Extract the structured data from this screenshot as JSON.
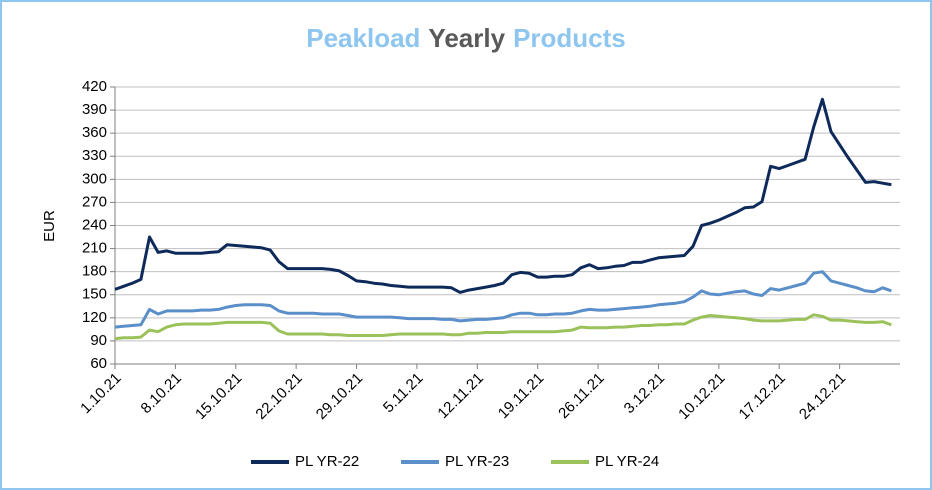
{
  "chart_data": {
    "type": "line",
    "title": [
      "Peakload",
      "Yearly",
      "Products"
    ],
    "title_colors": [
      "#8ec6f0",
      "#595959",
      "#8ec6f0"
    ],
    "ylabel": "EUR",
    "categories": [
      "1.10.21",
      null,
      null,
      null,
      null,
      null,
      null,
      "8.10.21",
      null,
      null,
      null,
      null,
      null,
      null,
      "15.10.21",
      null,
      null,
      null,
      null,
      null,
      null,
      "22.10.21",
      null,
      null,
      null,
      null,
      null,
      null,
      "29.10.21",
      null,
      null,
      null,
      null,
      null,
      null,
      "5.11.21",
      null,
      null,
      null,
      null,
      null,
      null,
      "12.11.21",
      null,
      null,
      null,
      null,
      null,
      null,
      "19.11.21",
      null,
      null,
      null,
      null,
      null,
      null,
      "26.11.21",
      null,
      null,
      null,
      null,
      null,
      null,
      "3.12.21",
      null,
      null,
      null,
      null,
      null,
      null,
      "10.12.21",
      null,
      null,
      null,
      null,
      null,
      null,
      "17.12.21",
      null,
      null,
      null,
      null,
      null,
      null,
      "24.12.21",
      null,
      null,
      null,
      null,
      null,
      null,
      null
    ],
    "series": [
      {
        "name": "PL YR-22",
        "color": "#0e2a5a",
        "values": [
          157,
          161,
          165,
          170,
          225,
          205,
          207,
          204,
          204,
          204,
          204,
          205,
          206,
          215,
          214,
          213,
          212,
          211,
          208,
          193,
          184,
          184,
          184,
          184,
          184,
          183,
          181,
          175,
          168,
          167,
          165,
          164,
          162,
          161,
          160,
          160,
          160,
          160,
          160,
          159,
          153,
          156,
          158,
          160,
          162,
          165,
          176,
          179,
          178,
          173,
          173,
          174,
          174,
          176,
          185,
          189,
          184,
          185,
          187,
          188,
          192,
          192,
          195,
          198,
          199,
          200,
          201,
          213,
          240,
          243,
          247,
          252,
          257,
          263,
          264,
          271,
          317,
          314,
          318,
          322,
          326,
          368,
          404,
          362,
          345,
          328,
          312,
          296,
          297,
          295,
          293,
          null
        ]
      },
      {
        "name": "PL YR-23",
        "color": "#5b8fc9",
        "values": [
          108,
          109,
          110,
          111,
          131,
          125,
          129,
          129,
          129,
          129,
          130,
          130,
          131,
          134,
          136,
          137,
          137,
          137,
          136,
          129,
          126,
          126,
          126,
          126,
          125,
          125,
          125,
          123,
          121,
          121,
          121,
          121,
          121,
          120,
          119,
          119,
          119,
          119,
          118,
          118,
          116,
          117,
          118,
          118,
          119,
          120,
          124,
          126,
          126,
          124,
          124,
          125,
          125,
          126,
          129,
          131,
          130,
          130,
          131,
          132,
          133,
          134,
          135,
          137,
          138,
          139,
          141,
          147,
          155,
          151,
          150,
          152,
          154,
          155,
          151,
          149,
          158,
          156,
          159,
          162,
          165,
          178,
          180,
          168,
          165,
          162,
          159,
          155,
          154,
          159,
          155,
          null
        ]
      },
      {
        "name": "PL YR-24",
        "color": "#9bc25a",
        "values": [
          93,
          94,
          94,
          95,
          104,
          102,
          108,
          111,
          112,
          112,
          112,
          112,
          113,
          114,
          114,
          114,
          114,
          114,
          113,
          103,
          99,
          99,
          99,
          99,
          99,
          98,
          98,
          97,
          97,
          97,
          97,
          97,
          98,
          99,
          99,
          99,
          99,
          99,
          99,
          98,
          98,
          100,
          100,
          101,
          101,
          101,
          102,
          102,
          102,
          102,
          102,
          102,
          103,
          104,
          108,
          107,
          107,
          107,
          108,
          108,
          109,
          110,
          110,
          111,
          111,
          112,
          112,
          117,
          121,
          123,
          122,
          121,
          120,
          119,
          117,
          116,
          116,
          116,
          117,
          118,
          118,
          124,
          122,
          117,
          117,
          116,
          115,
          114,
          114,
          115,
          111,
          null
        ]
      }
    ],
    "ylim": [
      60,
      420
    ],
    "yticks": [
      60,
      90,
      120,
      150,
      180,
      210,
      240,
      270,
      300,
      330,
      360,
      390,
      420
    ],
    "grid": true
  }
}
